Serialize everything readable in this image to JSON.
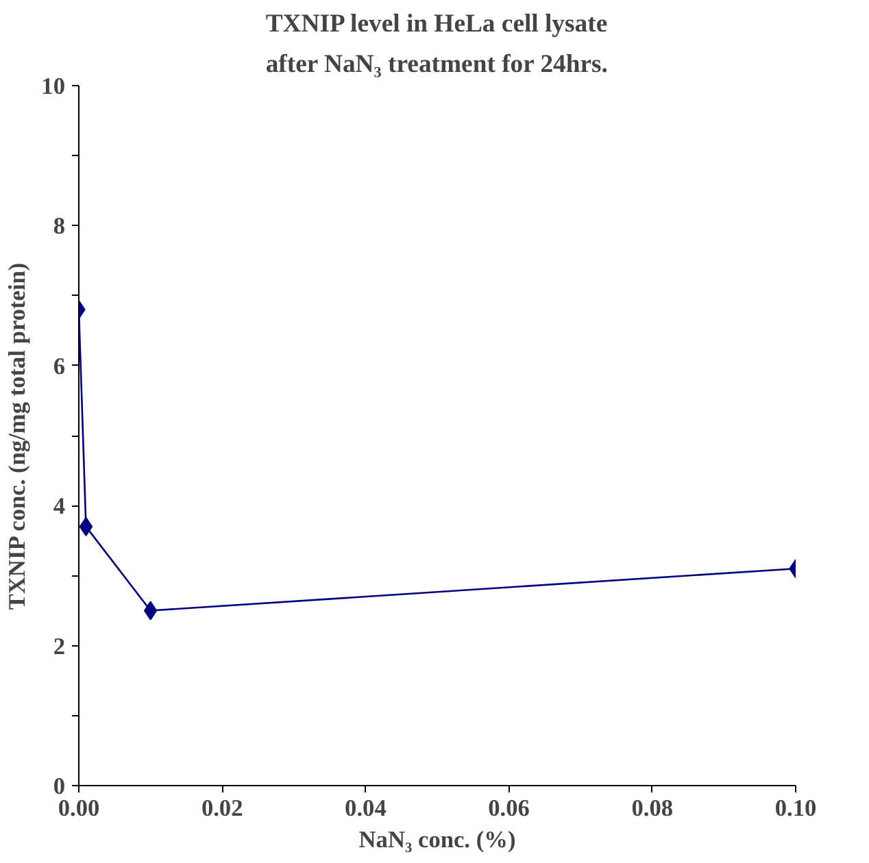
{
  "chart_data": {
    "type": "line",
    "title": "TXNIP level in HeLa cell lysate\nafter NaN₃ treatment for 24hrs.",
    "xlabel": "NaN₃ conc. (%)",
    "ylabel": "TXNIP conc. (ng/mg total protein)",
    "x": [
      0,
      0.001,
      0.01,
      0.1
    ],
    "series": [
      {
        "color": "#000080",
        "values": [
          6.8,
          3.7,
          2.5,
          3.1
        ]
      }
    ],
    "marker": "diamond",
    "line_style": "solid",
    "grid": false,
    "xlim": [
      0,
      0.1
    ],
    "xticks": [
      {
        "value": 0,
        "label": "0.00"
      },
      {
        "value": 0.02,
        "label": "0.02"
      },
      {
        "value": 0.04,
        "label": "0.04"
      },
      {
        "value": 0.06,
        "label": "0.06"
      },
      {
        "value": 0.08,
        "label": "0.08"
      },
      {
        "value": 0.1,
        "label": "0.10"
      }
    ],
    "ylim": [
      0,
      10
    ],
    "yticks": [
      0,
      {
        "value": 1,
        "label": null
      },
      2,
      {
        "value": 3,
        "label": null
      },
      4,
      {
        "value": 5,
        "label": null
      },
      6,
      {
        "value": 7,
        "label": null
      },
      8,
      {
        "value": 9,
        "label": null
      },
      10
    ]
  }
}
